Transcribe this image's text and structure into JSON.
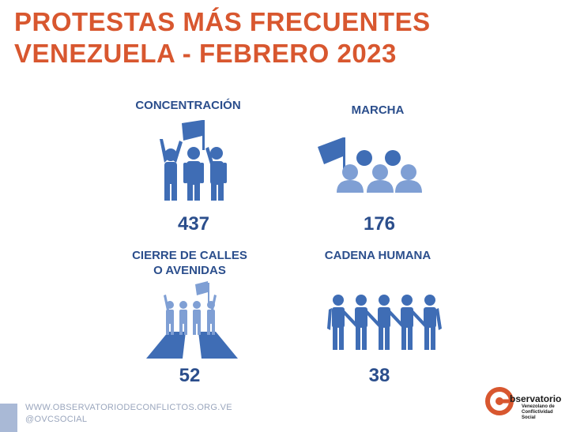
{
  "title": {
    "line1": "PROTESTAS MÁS FRECUENTES",
    "line2": "VENEZUELA - FEBRERO 2023"
  },
  "chart_data": {
    "type": "table",
    "categories": [
      "CONCENTRACIÓN",
      "MARCHA",
      "CIERRE DE CALLES O AVENIDAS",
      "CADENA HUMANA"
    ],
    "values": [
      437,
      176,
      52,
      38
    ]
  },
  "items": [
    {
      "label_lines": [
        "CONCENTRACIÓN"
      ],
      "value": "437",
      "icon": "protest-crowd-icon"
    },
    {
      "label_lines": [
        "MARCHA"
      ],
      "value": "176",
      "icon": "march-icon"
    },
    {
      "label_lines": [
        "CIERRE DE CALLES",
        "O AVENIDAS"
      ],
      "value": "52",
      "icon": "road-block-icon"
    },
    {
      "label_lines": [
        "CADENA HUMANA"
      ],
      "value": "38",
      "icon": "human-chain-icon"
    }
  ],
  "footer": {
    "website": "WWW.OBSERVATORIODECONFLICTOS.ORG.VE",
    "social": "@OVCSOCIAL"
  },
  "logo": {
    "word": "bservatorio",
    "sub1": "Venezolano de",
    "sub2": "Conflictividad Social"
  },
  "colors": {
    "title": "#d8572f",
    "primary": "#2b4e8c",
    "icon_dark": "#3f6db5",
    "icon_light": "#7f9fd4",
    "footer": "#9aa6bd"
  }
}
